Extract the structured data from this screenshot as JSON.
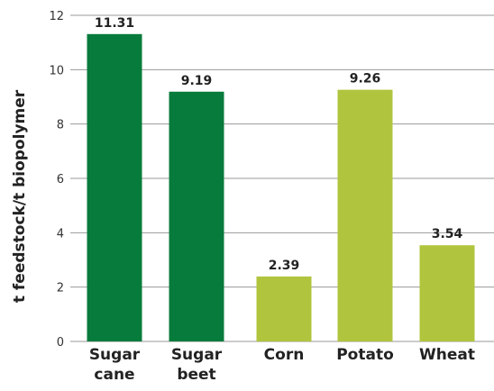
{
  "chart_data": {
    "type": "bar",
    "title": "",
    "xlabel": "",
    "ylabel": "t feedstock/t biopolymer",
    "ylim": [
      0,
      12
    ],
    "yticks": [
      0,
      2,
      4,
      6,
      8,
      10,
      12
    ],
    "grid": true,
    "categories": [
      [
        "Sugar",
        "cane"
      ],
      [
        "Sugar",
        "beet"
      ],
      [
        "Corn"
      ],
      [
        "Potato"
      ],
      [
        "Wheat"
      ]
    ],
    "values": [
      11.31,
      9.19,
      2.39,
      9.26,
      3.54
    ],
    "value_labels": [
      "11.31",
      "9.19",
      "2.39",
      "9.26",
      "3.54"
    ],
    "colors": [
      "#077b3b",
      "#077b3b",
      "#b1c43d",
      "#b1c43d",
      "#b1c43d"
    ]
  }
}
